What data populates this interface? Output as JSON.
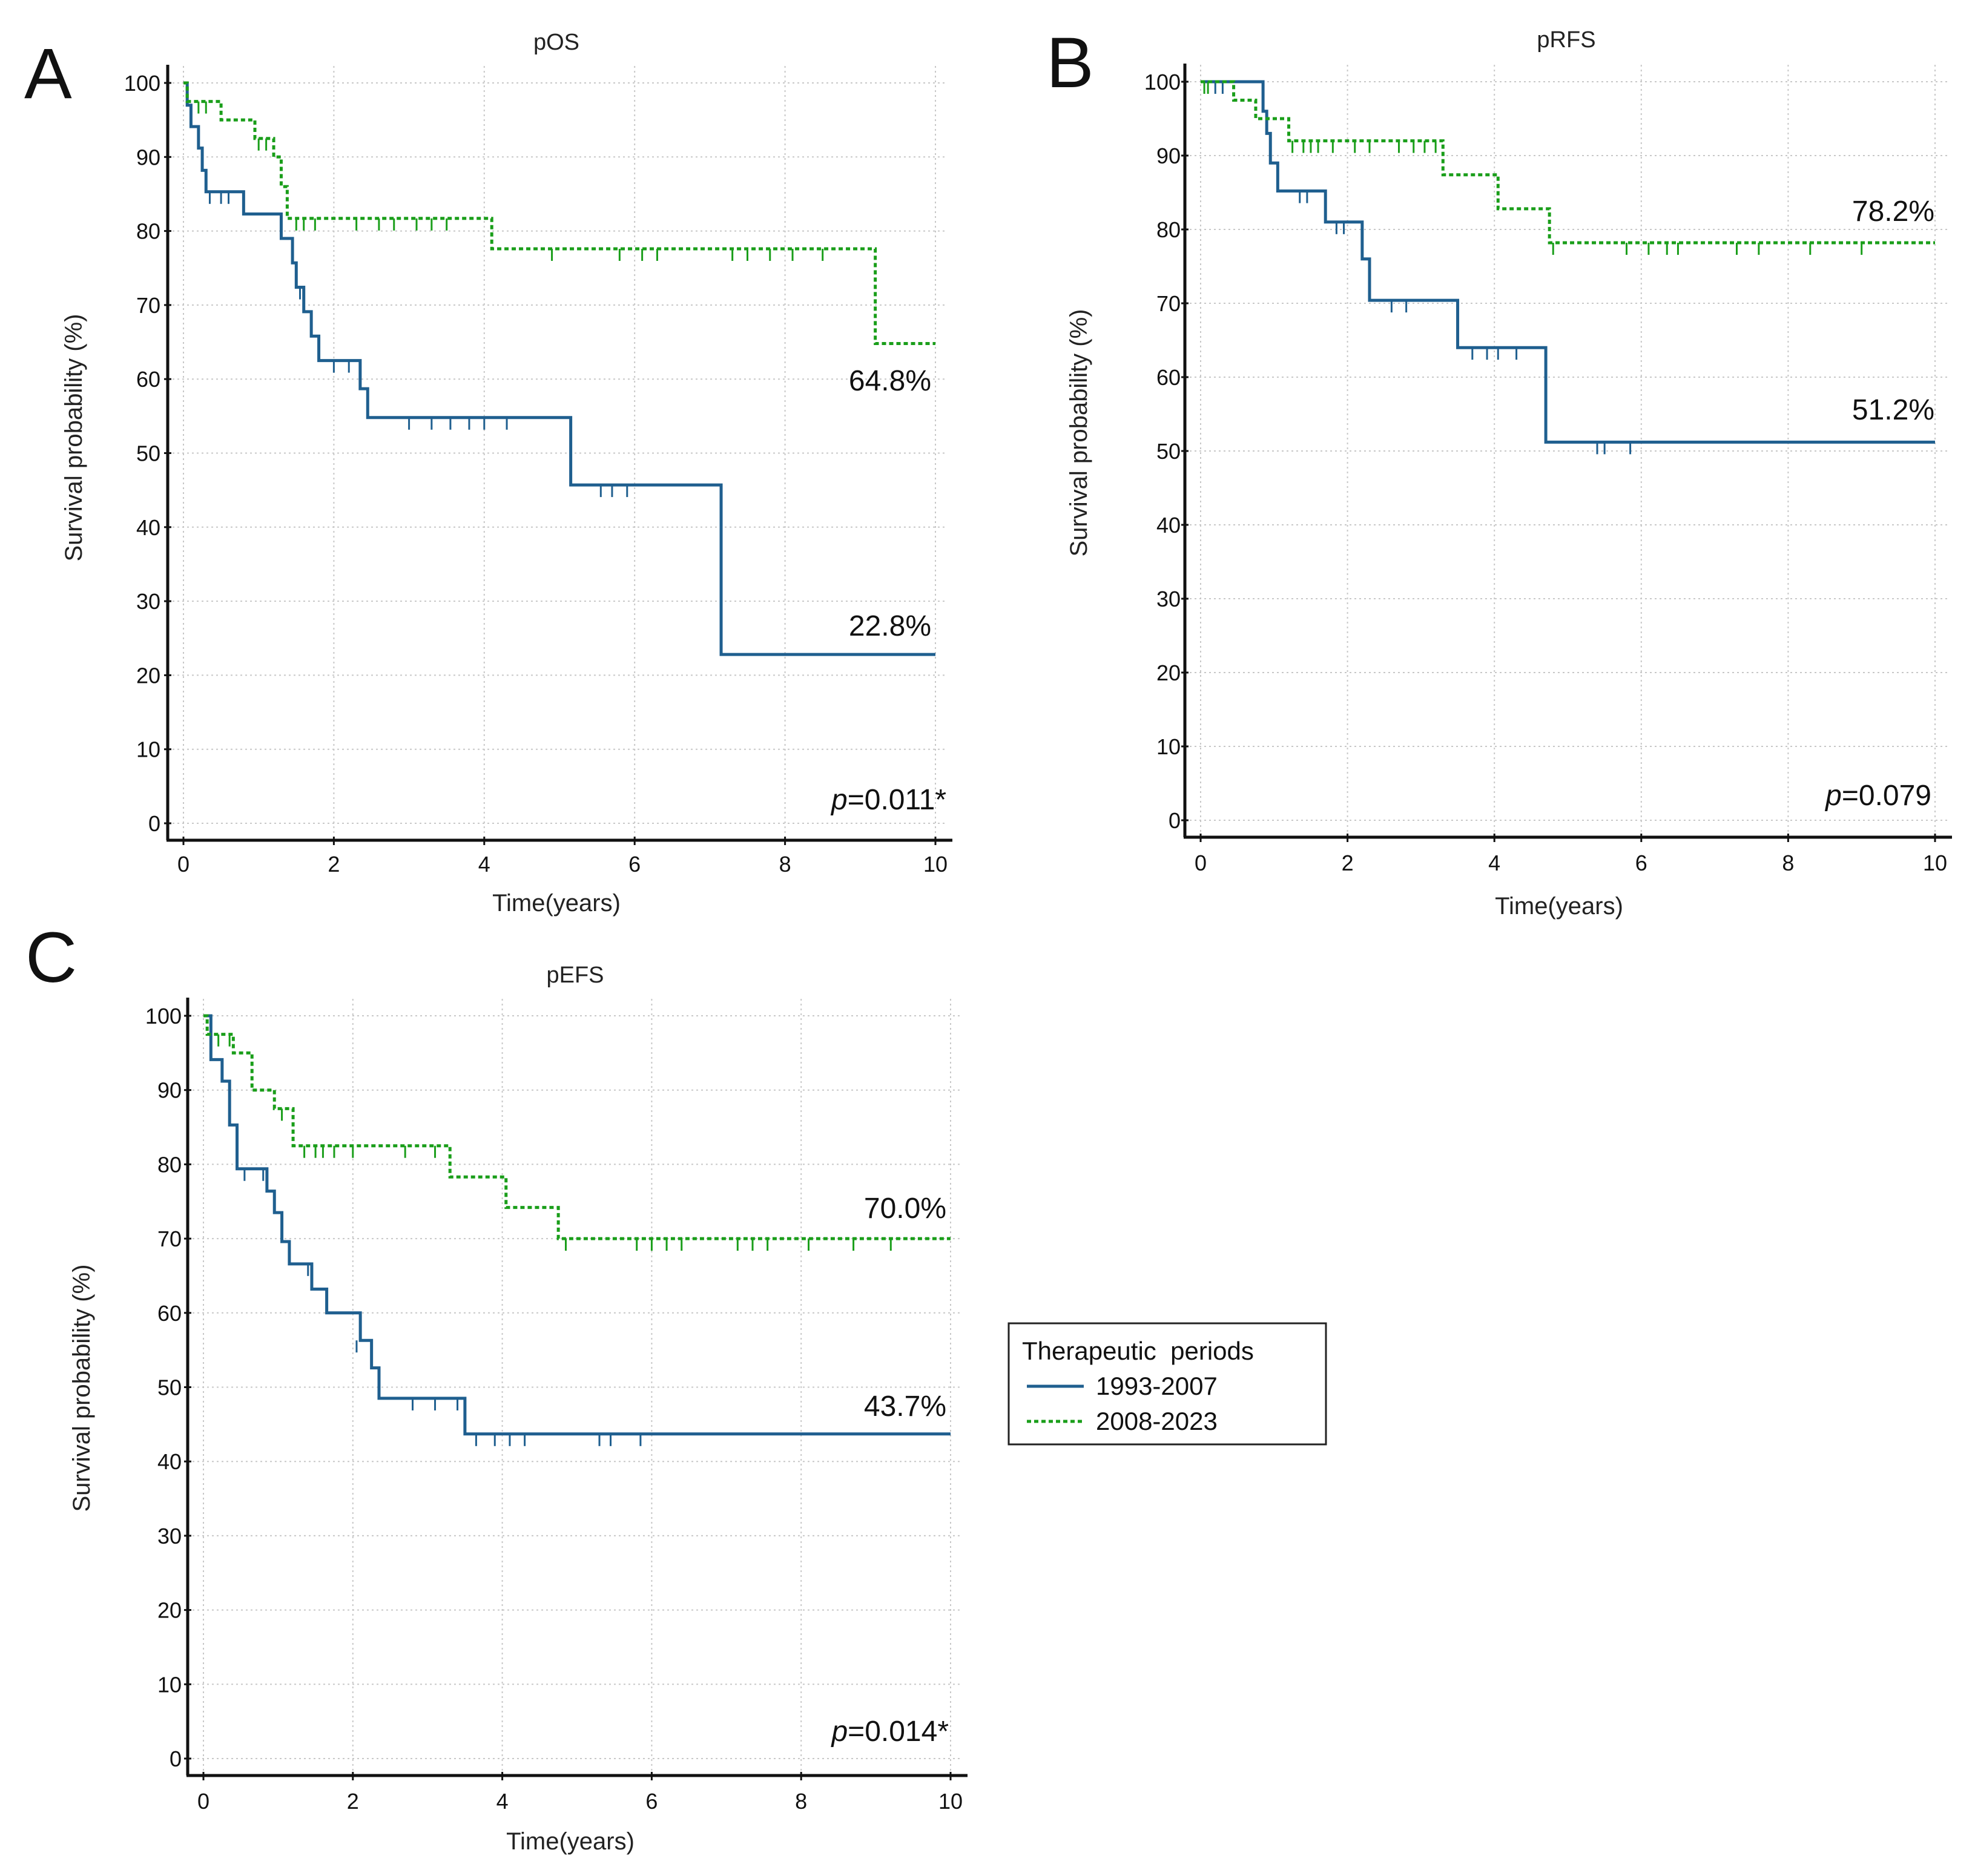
{
  "chart_data": [
    {
      "type": "line",
      "panel": "A",
      "title": "pOS",
      "xlabel": "Time(years)",
      "ylabel": "Survival probability (%)",
      "xlim": [
        0,
        10
      ],
      "ylim": [
        0,
        100
      ],
      "xticks": [
        "0",
        "2",
        "4",
        "6",
        "8",
        "10"
      ],
      "yticks": [
        "0",
        "10",
        "20",
        "30",
        "40",
        "50",
        "60",
        "70",
        "80",
        "90",
        "100"
      ],
      "grid": true,
      "pvalue_prefix": "p",
      "pvalue": "=0.011*",
      "series": [
        {
          "name": "1993-2007",
          "end_label": "22.8%",
          "end_label_value": 22.8,
          "x": [
            0,
            0.05,
            0.1,
            0.2,
            0.25,
            0.3,
            0.8,
            1.3,
            1.45,
            1.5,
            1.6,
            1.7,
            1.8,
            1.95,
            2.35,
            2.45,
            5.15,
            7.15,
            10
          ],
          "y": [
            100,
            97,
            94.1,
            91.2,
            88.2,
            85.3,
            82.3,
            79,
            75.7,
            72.4,
            69.1,
            65.8,
            62.5,
            62.5,
            58.7,
            54.8,
            45.7,
            22.8,
            22.8
          ],
          "censored": [
            [
              0.35,
              85.3
            ],
            [
              0.5,
              85.3
            ],
            [
              0.6,
              85.3
            ],
            [
              1.55,
              72.4
            ],
            [
              2.0,
              62.5
            ],
            [
              2.2,
              62.5
            ],
            [
              3.0,
              54.8
            ],
            [
              3.3,
              54.8
            ],
            [
              3.55,
              54.8
            ],
            [
              3.8,
              54.8
            ],
            [
              4.0,
              54.8
            ],
            [
              4.3,
              54.8
            ],
            [
              5.55,
              45.7
            ],
            [
              5.7,
              45.7
            ],
            [
              5.9,
              45.7
            ]
          ]
        },
        {
          "name": "2008-2023",
          "end_label": "64.8%",
          "end_label_value": 64.8,
          "x": [
            0,
            0.05,
            0.5,
            0.95,
            1.2,
            1.3,
            1.38,
            4.1,
            9.2,
            10
          ],
          "y": [
            100,
            97.5,
            95,
            92.5,
            90,
            86,
            81.7,
            77.6,
            64.8,
            64.8
          ],
          "censored": [
            [
              0.2,
              97.5
            ],
            [
              0.3,
              97.5
            ],
            [
              1.0,
              92.5
            ],
            [
              1.1,
              92.5
            ],
            [
              1.5,
              81.7
            ],
            [
              1.6,
              81.7
            ],
            [
              1.75,
              81.7
            ],
            [
              2.3,
              81.7
            ],
            [
              2.6,
              81.7
            ],
            [
              2.8,
              81.7
            ],
            [
              3.1,
              81.7
            ],
            [
              3.3,
              81.7
            ],
            [
              3.5,
              81.7
            ],
            [
              4.9,
              77.6
            ],
            [
              5.8,
              77.6
            ],
            [
              6.1,
              77.6
            ],
            [
              6.3,
              77.6
            ],
            [
              7.3,
              77.6
            ],
            [
              7.5,
              77.6
            ],
            [
              7.8,
              77.6
            ],
            [
              8.1,
              77.6
            ],
            [
              8.5,
              77.6
            ]
          ]
        }
      ]
    },
    {
      "type": "line",
      "panel": "B",
      "title": "pRFS",
      "xlabel": "Time(years)",
      "ylabel": "Survival probability (%)",
      "xlim": [
        0,
        10
      ],
      "ylim": [
        0,
        100
      ],
      "xticks": [
        "0",
        "2",
        "4",
        "6",
        "8",
        "10"
      ],
      "yticks": [
        "0",
        "10",
        "20",
        "30",
        "40",
        "50",
        "60",
        "70",
        "80",
        "90",
        "100"
      ],
      "grid": true,
      "pvalue_prefix": "p",
      "pvalue": "=0.079",
      "series": [
        {
          "name": "1993-2007",
          "end_label": "51.2%",
          "end_label_value": 51.2,
          "x": [
            0,
            0.85,
            0.9,
            0.95,
            1.05,
            1.15,
            1.7,
            2.2,
            2.3,
            3.5,
            4.7,
            10
          ],
          "y": [
            100,
            96,
            93,
            89,
            85.2,
            85.2,
            81,
            76,
            70.4,
            64,
            51.2,
            51.2
          ],
          "censored": [
            [
              0.2,
              100
            ],
            [
              0.3,
              100
            ],
            [
              1.35,
              85.2
            ],
            [
              1.45,
              85.2
            ],
            [
              1.85,
              81
            ],
            [
              1.95,
              81
            ],
            [
              2.6,
              70.4
            ],
            [
              2.8,
              70.4
            ],
            [
              3.7,
              64
            ],
            [
              3.9,
              64
            ],
            [
              4.05,
              64
            ],
            [
              4.3,
              64
            ],
            [
              5.4,
              51.2
            ],
            [
              5.5,
              51.2
            ],
            [
              5.85,
              51.2
            ]
          ]
        },
        {
          "name": "2008-2023",
          "end_label": "78.2%",
          "end_label_value": 78.2,
          "x": [
            0,
            0.45,
            0.75,
            1.2,
            3.3,
            4.05,
            4.75,
            10
          ],
          "y": [
            100,
            97.5,
            95,
            92,
            87.4,
            82.8,
            78.2,
            78.2
          ],
          "censored": [
            [
              0.05,
              100
            ],
            [
              0.1,
              100
            ],
            [
              1.25,
              92
            ],
            [
              1.4,
              92
            ],
            [
              1.5,
              92
            ],
            [
              1.6,
              92
            ],
            [
              1.8,
              92
            ],
            [
              2.1,
              92
            ],
            [
              2.3,
              92
            ],
            [
              2.7,
              92
            ],
            [
              2.9,
              92
            ],
            [
              3.05,
              92
            ],
            [
              3.2,
              92
            ],
            [
              4.8,
              78.2
            ],
            [
              5.8,
              78.2
            ],
            [
              6.1,
              78.2
            ],
            [
              6.35,
              78.2
            ],
            [
              6.5,
              78.2
            ],
            [
              7.3,
              78.2
            ],
            [
              7.6,
              78.2
            ],
            [
              8.3,
              78.2
            ],
            [
              9.0,
              78.2
            ]
          ]
        }
      ]
    },
    {
      "type": "line",
      "panel": "C",
      "title": "pEFS",
      "xlabel": "Time(years)",
      "ylabel": "Survival probability (%)",
      "xlim": [
        0,
        10
      ],
      "ylim": [
        0,
        100
      ],
      "xticks": [
        "0",
        "2",
        "4",
        "6",
        "8",
        "10"
      ],
      "yticks": [
        "0",
        "10",
        "20",
        "30",
        "40",
        "50",
        "60",
        "70",
        "80",
        "90",
        "100"
      ],
      "grid": true,
      "pvalue_prefix": "p",
      "pvalue": "=0.014*",
      "series": [
        {
          "name": "1993-2007",
          "end_label": "43.7%",
          "end_label_value": 43.7,
          "x": [
            0,
            0.1,
            0.25,
            0.35,
            0.45,
            0.85,
            0.95,
            1.05,
            1.15,
            1.45,
            1.65,
            2.1,
            2.25,
            2.35,
            3.5,
            10
          ],
          "y": [
            100,
            94.1,
            91.2,
            85.3,
            79.4,
            76.4,
            73.5,
            69.6,
            66.6,
            63.2,
            60,
            56.3,
            52.6,
            48.5,
            43.7,
            43.7
          ],
          "censored": [
            [
              0.55,
              79.4
            ],
            [
              0.8,
              79.4
            ],
            [
              1.4,
              66.6
            ],
            [
              2.05,
              56.3
            ],
            [
              2.8,
              48.5
            ],
            [
              3.1,
              48.5
            ],
            [
              3.4,
              48.5
            ],
            [
              3.65,
              43.7
            ],
            [
              3.9,
              43.7
            ],
            [
              4.1,
              43.7
            ],
            [
              4.3,
              43.7
            ],
            [
              5.3,
              43.7
            ],
            [
              5.45,
              43.7
            ],
            [
              5.85,
              43.7
            ]
          ]
        },
        {
          "name": "2008-2023",
          "end_label": "70.0%",
          "end_label_value": 70.0,
          "x": [
            0,
            0.05,
            0.4,
            0.65,
            0.95,
            1.2,
            3.3,
            4.05,
            4.75,
            10
          ],
          "y": [
            100,
            97.5,
            95,
            90,
            87.5,
            82.5,
            78.3,
            74.2,
            70,
            70
          ],
          "censored": [
            [
              0.2,
              97.5
            ],
            [
              0.35,
              97.5
            ],
            [
              1.05,
              87.5
            ],
            [
              1.35,
              82.5
            ],
            [
              1.5,
              82.5
            ],
            [
              1.6,
              82.5
            ],
            [
              1.75,
              82.5
            ],
            [
              2.0,
              82.5
            ],
            [
              2.7,
              82.5
            ],
            [
              3.1,
              82.5
            ],
            [
              4.85,
              70
            ],
            [
              5.8,
              70
            ],
            [
              6.0,
              70
            ],
            [
              6.2,
              70
            ],
            [
              6.4,
              70
            ],
            [
              7.15,
              70
            ],
            [
              7.35,
              70
            ],
            [
              7.55,
              70
            ],
            [
              8.1,
              70
            ],
            [
              8.7,
              70
            ],
            [
              9.2,
              70
            ]
          ]
        }
      ]
    }
  ],
  "legend": {
    "title": "Therapeutic  periods",
    "items": [
      {
        "label": "1993-2007",
        "color": "#1f5f8f",
        "style": "solid"
      },
      {
        "label": "2008-2023",
        "color": "#1a9e1a",
        "style": "dotted"
      }
    ]
  },
  "colors": {
    "series1": "#1f5f8f",
    "series2": "#1a9e1a"
  }
}
